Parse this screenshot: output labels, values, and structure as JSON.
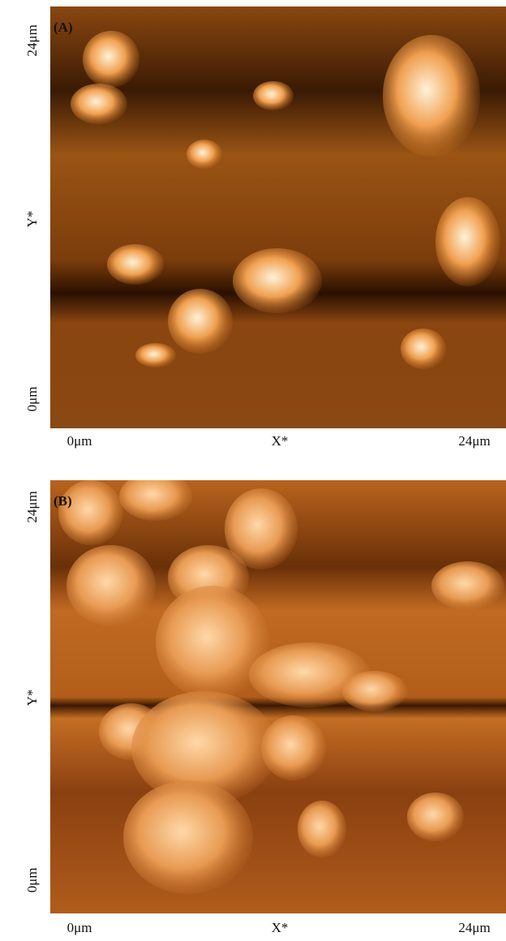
{
  "panels": [
    {
      "label": "(A)",
      "y_labels": [
        "24μm",
        "Y*",
        "0μm"
      ],
      "x_labels": [
        "0μm",
        "X*",
        "24μm"
      ]
    },
    {
      "label": "(B)",
      "y_labels": [
        "24μm",
        "Y*",
        "0μm"
      ],
      "x_labels": [
        "0μm",
        "X*",
        "24μm"
      ]
    }
  ]
}
